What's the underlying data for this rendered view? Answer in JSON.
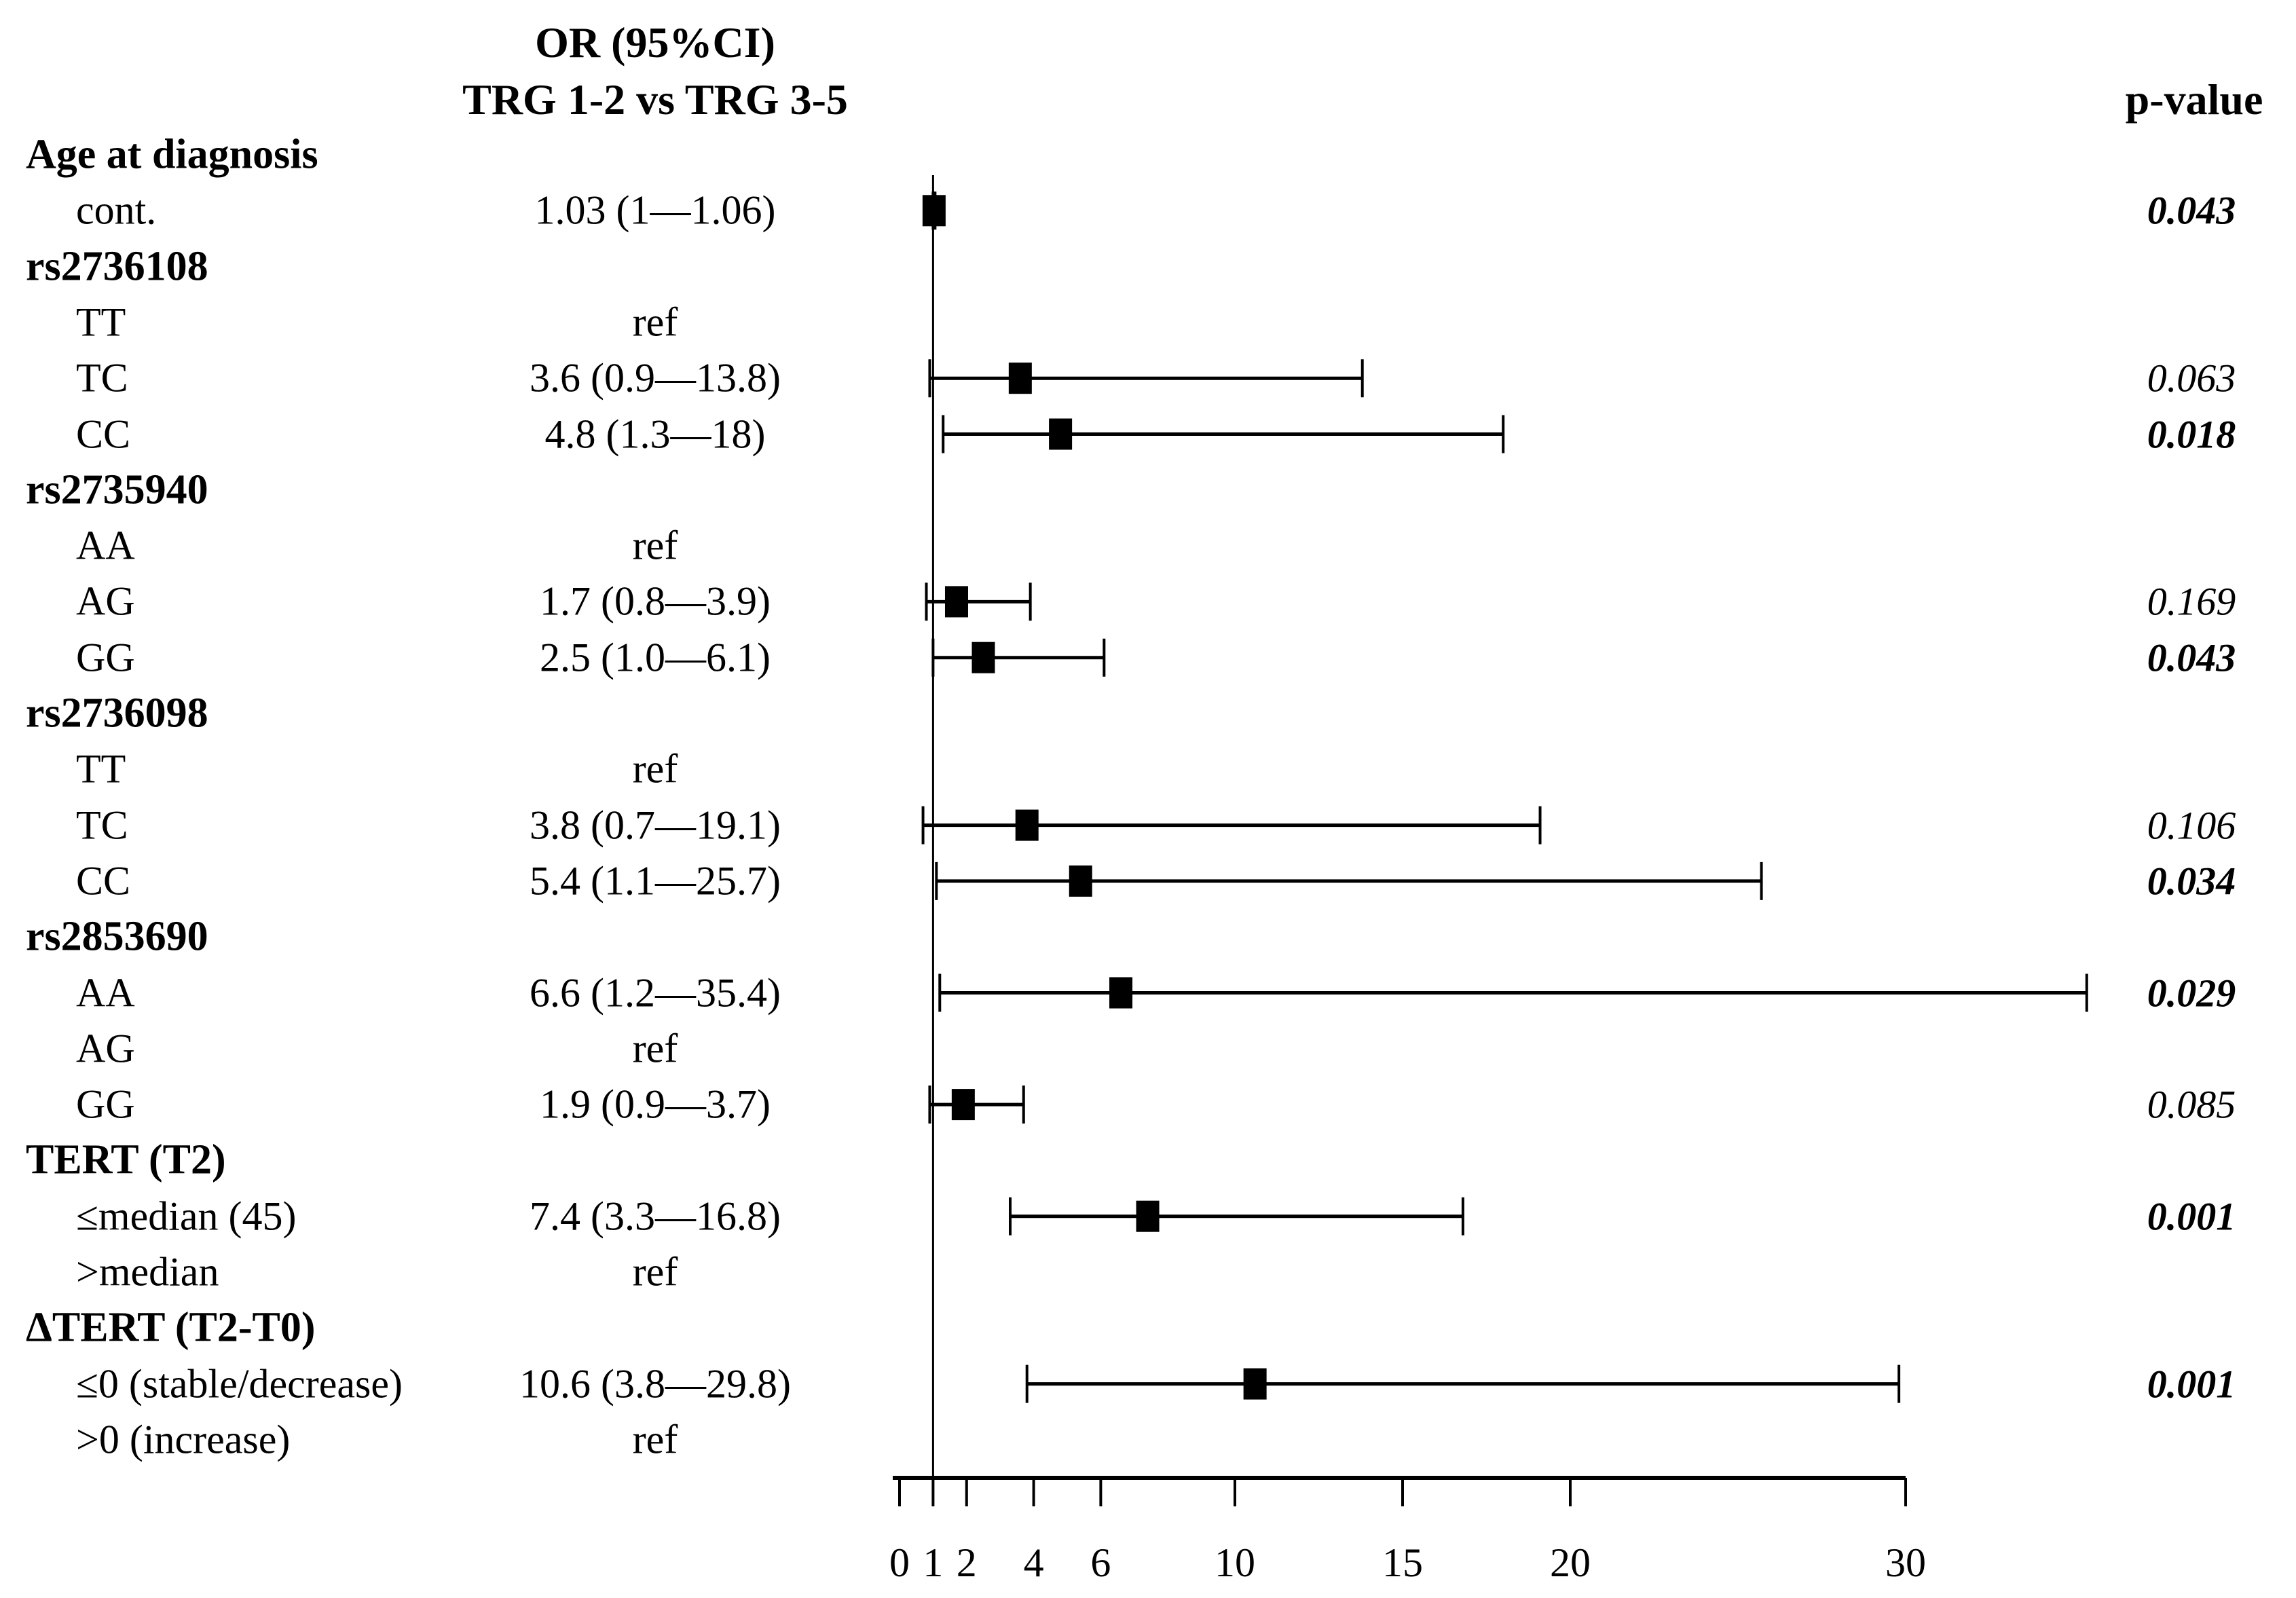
{
  "header": {
    "or_col_line1": "OR (95%CI)",
    "or_col_line2": "TRG 1-2 vs TRG 3-5",
    "p_col": "p-value"
  },
  "colors": {
    "foreground": "#000000",
    "background": "#ffffff"
  },
  "chart_data": {
    "type": "forest",
    "title": "OR (95%CI) TRG 1-2 vs TRG 3-5",
    "x_axis": {
      "ticks": [
        0,
        1,
        2,
        4,
        6,
        10,
        15,
        20,
        30
      ],
      "range": [
        0,
        30
      ],
      "reference_line": 1,
      "scale": "linear"
    },
    "legend": "none",
    "grid": false,
    "marker": "black-square",
    "rows": [
      {
        "kind": "group",
        "label": "Age at diagnosis"
      },
      {
        "kind": "item",
        "label": "cont.",
        "or_text": "1.03 (1—1.06)",
        "or": 1.03,
        "ci_low": 1,
        "ci_high": 1.06,
        "p": "0.043",
        "significant": true
      },
      {
        "kind": "group",
        "label": "rs2736108"
      },
      {
        "kind": "item",
        "label": "TT",
        "or_text": "ref"
      },
      {
        "kind": "item",
        "label": "TC",
        "or_text": "3.6 (0.9—13.8)",
        "or": 3.6,
        "ci_low": 0.9,
        "ci_high": 13.8,
        "p": "0.063",
        "significant": false
      },
      {
        "kind": "item",
        "label": "CC",
        "or_text": "4.8 (1.3—18)",
        "or": 4.8,
        "ci_low": 1.3,
        "ci_high": 18,
        "p": "0.018",
        "significant": true
      },
      {
        "kind": "group",
        "label": "rs2735940"
      },
      {
        "kind": "item",
        "label": "AA",
        "or_text": "ref"
      },
      {
        "kind": "item",
        "label": "AG",
        "or_text": "1.7 (0.8—3.9)",
        "or": 1.7,
        "ci_low": 0.8,
        "ci_high": 3.9,
        "p": "0.169",
        "significant": false
      },
      {
        "kind": "item",
        "label": "GG",
        "or_text": "2.5 (1.0—6.1)",
        "or": 2.5,
        "ci_low": 1.0,
        "ci_high": 6.1,
        "p": "0.043",
        "significant": true
      },
      {
        "kind": "group",
        "label": "rs2736098"
      },
      {
        "kind": "item",
        "label": "TT",
        "or_text": "ref"
      },
      {
        "kind": "item",
        "label": "TC",
        "or_text": "3.8 (0.7—19.1)",
        "or": 3.8,
        "ci_low": 0.7,
        "ci_high": 19.1,
        "p": "0.106",
        "significant": false
      },
      {
        "kind": "item",
        "label": "CC",
        "or_text": "5.4 (1.1—25.7)",
        "or": 5.4,
        "ci_low": 1.1,
        "ci_high": 25.7,
        "p": "0.034",
        "significant": true
      },
      {
        "kind": "group",
        "label": "rs2853690"
      },
      {
        "kind": "item",
        "label": "AA",
        "or_text": "6.6 (1.2—35.4)",
        "or": 6.6,
        "ci_low": 1.2,
        "ci_high": 35.4,
        "p": "0.029",
        "significant": true
      },
      {
        "kind": "item",
        "label": "AG",
        "or_text": "ref"
      },
      {
        "kind": "item",
        "label": "GG",
        "or_text": "1.9 (0.9—3.7)",
        "or": 1.9,
        "ci_low": 0.9,
        "ci_high": 3.7,
        "p": "0.085",
        "significant": false
      },
      {
        "kind": "group",
        "label": "TERT (T2)"
      },
      {
        "kind": "item",
        "label": "≤median (45)",
        "or_text": "7.4 (3.3—16.8)",
        "or": 7.4,
        "ci_low": 3.3,
        "ci_high": 16.8,
        "p": "0.001",
        "significant": true
      },
      {
        "kind": "item",
        "label": ">median",
        "or_text": "ref"
      },
      {
        "kind": "group",
        "label": "ΔTERT (T2-T0)"
      },
      {
        "kind": "item",
        "label": "≤0 (stable/decrease)",
        "or_text": "10.6 (3.8—29.8)",
        "or": 10.6,
        "ci_low": 3.8,
        "ci_high": 29.8,
        "p": "0.001",
        "significant": true
      },
      {
        "kind": "item",
        "label": ">0 (increase)",
        "or_text": "ref"
      }
    ]
  }
}
